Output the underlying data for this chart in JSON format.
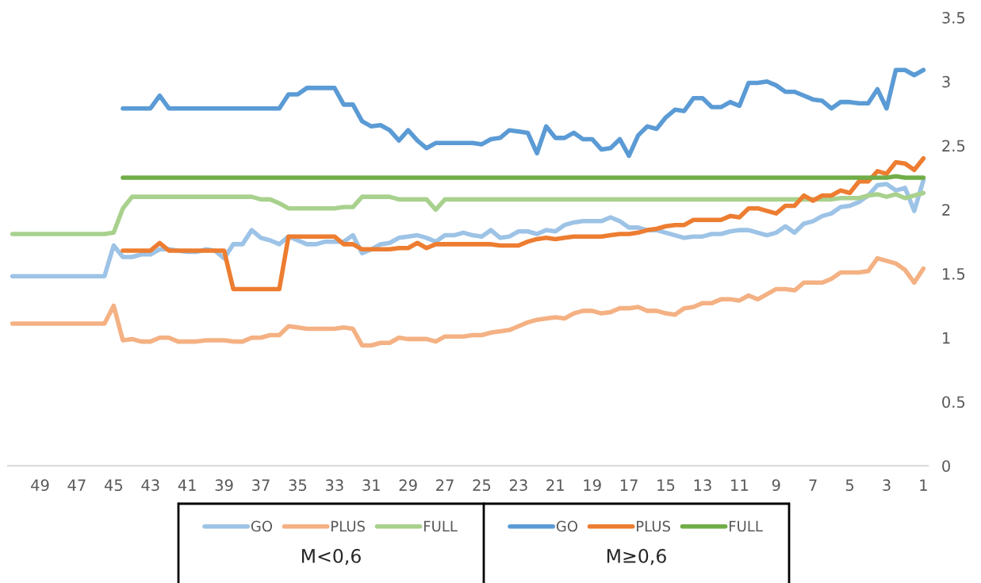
{
  "chart_data": {
    "type": "line",
    "x": [
      50.5,
      50,
      49.5,
      49,
      48.5,
      48,
      47.5,
      47,
      46.5,
      46,
      45.5,
      45,
      44.5,
      44,
      43.5,
      43,
      42.5,
      42,
      41.5,
      41,
      40.5,
      40,
      39.5,
      39,
      38.5,
      38,
      37.5,
      37,
      36.5,
      36,
      35.5,
      35,
      34.5,
      34,
      33.5,
      33,
      32.5,
      32,
      31.5,
      31,
      30.5,
      30,
      29.5,
      29,
      28.5,
      28,
      27.5,
      27,
      26.5,
      26,
      25.5,
      25,
      24.5,
      24,
      23.5,
      23,
      22.5,
      22,
      21.5,
      21,
      20.5,
      20,
      19.5,
      19,
      18.5,
      18,
      17.5,
      17,
      16.5,
      16,
      15.5,
      15,
      14.5,
      14,
      13.5,
      13,
      12.5,
      12,
      11.5,
      11,
      10.5,
      10,
      9.5,
      9,
      8.5,
      8,
      7.5,
      7,
      6.5,
      6,
      5.5,
      5,
      4.5,
      4,
      3.5,
      3,
      2.5,
      2,
      1.5,
      1
    ],
    "xlim": [
      50.75,
      0.75
    ],
    "xticks": [
      49,
      47,
      45,
      43,
      41,
      39,
      37,
      35,
      33,
      31,
      29,
      27,
      25,
      23,
      21,
      19,
      17,
      15,
      13,
      11,
      9,
      7,
      5,
      3,
      1
    ],
    "ylim": [
      0,
      3.5
    ],
    "yticks": [
      0,
      0.5,
      1,
      1.5,
      2,
      2.5,
      3,
      3.5
    ],
    "grid": false,
    "legend": "bottom",
    "annotations": [
      "M<0,6",
      "M≥0,6"
    ],
    "series": [
      {
        "name": "GO",
        "color": "#9dc3e6",
        "values": [
          1.48,
          1.48,
          1.48,
          1.48,
          1.48,
          1.48,
          1.48,
          1.48,
          1.48,
          1.48,
          1.48,
          1.72,
          1.63,
          1.63,
          1.65,
          1.65,
          1.69,
          1.69,
          1.68,
          1.67,
          1.67,
          1.69,
          1.68,
          1.62,
          1.73,
          1.73,
          1.84,
          1.78,
          1.76,
          1.73,
          1.79,
          1.76,
          1.73,
          1.73,
          1.75,
          1.75,
          1.75,
          1.8,
          1.66,
          1.69,
          1.73,
          1.74,
          1.78,
          1.79,
          1.8,
          1.78,
          1.75,
          1.8,
          1.8,
          1.82,
          1.8,
          1.79,
          1.84,
          1.78,
          1.79,
          1.83,
          1.83,
          1.81,
          1.84,
          1.83,
          1.88,
          1.9,
          1.91,
          1.91,
          1.91,
          1.94,
          1.91,
          1.86,
          1.86,
          1.84,
          1.84,
          1.82,
          1.8,
          1.78,
          1.79,
          1.79,
          1.81,
          1.81,
          1.83,
          1.84,
          1.84,
          1.82,
          1.8,
          1.82,
          1.87,
          1.82,
          1.89,
          1.91,
          1.95,
          1.97,
          2.02,
          2.03,
          2.06,
          2.11,
          2.19,
          2.2,
          2.15,
          2.17,
          1.99,
          2.23
        ]
      },
      {
        "name": "PLUS",
        "color": "#f4b183",
        "values": [
          1.11,
          1.11,
          1.11,
          1.11,
          1.11,
          1.11,
          1.11,
          1.11,
          1.11,
          1.11,
          1.11,
          1.25,
          0.98,
          0.99,
          0.97,
          0.97,
          1.0,
          1.0,
          0.97,
          0.97,
          0.97,
          0.98,
          0.98,
          0.98,
          0.97,
          0.97,
          1.0,
          1.0,
          1.02,
          1.02,
          1.09,
          1.08,
          1.07,
          1.07,
          1.07,
          1.07,
          1.08,
          1.07,
          0.94,
          0.94,
          0.96,
          0.96,
          1.0,
          0.99,
          0.99,
          0.99,
          0.97,
          1.01,
          1.01,
          1.01,
          1.02,
          1.02,
          1.04,
          1.05,
          1.06,
          1.09,
          1.12,
          1.14,
          1.15,
          1.16,
          1.15,
          1.19,
          1.21,
          1.21,
          1.19,
          1.2,
          1.23,
          1.23,
          1.24,
          1.21,
          1.21,
          1.19,
          1.18,
          1.23,
          1.24,
          1.27,
          1.27,
          1.3,
          1.3,
          1.29,
          1.33,
          1.3,
          1.34,
          1.38,
          1.38,
          1.37,
          1.43,
          1.43,
          1.43,
          1.46,
          1.51,
          1.51,
          1.51,
          1.52,
          1.62,
          1.6,
          1.58,
          1.53,
          1.43,
          1.54
        ]
      },
      {
        "name": "FULL",
        "color": "#a9d18e",
        "values": [
          1.81,
          1.81,
          1.81,
          1.81,
          1.81,
          1.81,
          1.81,
          1.81,
          1.81,
          1.81,
          1.81,
          1.82,
          2.01,
          2.1,
          2.1,
          2.1,
          2.1,
          2.1,
          2.1,
          2.1,
          2.1,
          2.1,
          2.1,
          2.1,
          2.1,
          2.1,
          2.1,
          2.08,
          2.08,
          2.05,
          2.01,
          2.01,
          2.01,
          2.01,
          2.01,
          2.01,
          2.02,
          2.02,
          2.1,
          2.1,
          2.1,
          2.1,
          2.08,
          2.08,
          2.08,
          2.08,
          2.0,
          2.08,
          2.08,
          2.08,
          2.08,
          2.08,
          2.08,
          2.08,
          2.08,
          2.08,
          2.08,
          2.08,
          2.08,
          2.08,
          2.08,
          2.08,
          2.08,
          2.08,
          2.08,
          2.08,
          2.08,
          2.08,
          2.08,
          2.08,
          2.08,
          2.08,
          2.08,
          2.08,
          2.08,
          2.08,
          2.08,
          2.08,
          2.08,
          2.08,
          2.08,
          2.08,
          2.08,
          2.08,
          2.08,
          2.08,
          2.08,
          2.08,
          2.08,
          2.08,
          2.09,
          2.09,
          2.09,
          2.11,
          2.12,
          2.1,
          2.12,
          2.09,
          2.11,
          2.13
        ]
      },
      {
        "name": "GO",
        "color": "#5b9bd5",
        "values": [
          null,
          null,
          null,
          null,
          null,
          null,
          null,
          null,
          null,
          null,
          null,
          null,
          2.79,
          2.79,
          2.79,
          2.79,
          2.89,
          2.79,
          2.79,
          2.79,
          2.79,
          2.79,
          2.79,
          2.79,
          2.79,
          2.79,
          2.79,
          2.79,
          2.79,
          2.79,
          2.9,
          2.9,
          2.95,
          2.95,
          2.95,
          2.95,
          2.82,
          2.82,
          2.69,
          2.65,
          2.66,
          2.62,
          2.54,
          2.62,
          2.54,
          2.48,
          2.52,
          2.52,
          2.52,
          2.52,
          2.52,
          2.51,
          2.55,
          2.56,
          2.62,
          2.61,
          2.6,
          2.44,
          2.65,
          2.56,
          2.56,
          2.6,
          2.55,
          2.55,
          2.47,
          2.48,
          2.55,
          2.42,
          2.58,
          2.65,
          2.63,
          2.72,
          2.78,
          2.77,
          2.87,
          2.87,
          2.8,
          2.8,
          2.84,
          2.81,
          2.99,
          2.99,
          3.0,
          2.97,
          2.92,
          2.92,
          2.89,
          2.86,
          2.85,
          2.79,
          2.84,
          2.84,
          2.83,
          2.83,
          2.94,
          2.79,
          3.09,
          3.09,
          3.05,
          3.09
        ]
      },
      {
        "name": "PLUS",
        "color": "#ed7d31",
        "values": [
          null,
          null,
          null,
          null,
          null,
          null,
          null,
          null,
          null,
          null,
          null,
          null,
          1.68,
          1.68,
          1.68,
          1.68,
          1.74,
          1.68,
          1.68,
          1.68,
          1.68,
          1.68,
          1.68,
          1.68,
          1.38,
          1.38,
          1.38,
          1.38,
          1.38,
          1.38,
          1.79,
          1.79,
          1.79,
          1.79,
          1.79,
          1.79,
          1.73,
          1.73,
          1.69,
          1.69,
          1.69,
          1.69,
          1.7,
          1.7,
          1.74,
          1.7,
          1.73,
          1.73,
          1.73,
          1.73,
          1.73,
          1.73,
          1.73,
          1.72,
          1.72,
          1.72,
          1.75,
          1.77,
          1.78,
          1.77,
          1.78,
          1.79,
          1.79,
          1.79,
          1.79,
          1.8,
          1.81,
          1.81,
          1.82,
          1.84,
          1.85,
          1.87,
          1.88,
          1.88,
          1.92,
          1.92,
          1.92,
          1.92,
          1.95,
          1.94,
          2.01,
          2.01,
          1.99,
          1.97,
          2.03,
          2.03,
          2.11,
          2.07,
          2.11,
          2.11,
          2.15,
          2.13,
          2.22,
          2.22,
          2.3,
          2.28,
          2.37,
          2.36,
          2.31,
          2.4
        ]
      },
      {
        "name": "FULL",
        "color": "#70ad47",
        "values": [
          null,
          null,
          null,
          null,
          null,
          null,
          null,
          null,
          null,
          null,
          null,
          null,
          2.25,
          2.25,
          2.25,
          2.25,
          2.25,
          2.25,
          2.25,
          2.25,
          2.25,
          2.25,
          2.25,
          2.25,
          2.25,
          2.25,
          2.25,
          2.25,
          2.25,
          2.25,
          2.25,
          2.25,
          2.25,
          2.25,
          2.25,
          2.25,
          2.25,
          2.25,
          2.25,
          2.25,
          2.25,
          2.25,
          2.25,
          2.25,
          2.25,
          2.25,
          2.25,
          2.25,
          2.25,
          2.25,
          2.25,
          2.25,
          2.25,
          2.25,
          2.25,
          2.25,
          2.25,
          2.25,
          2.25,
          2.25,
          2.25,
          2.25,
          2.25,
          2.25,
          2.25,
          2.25,
          2.25,
          2.25,
          2.25,
          2.25,
          2.25,
          2.25,
          2.25,
          2.25,
          2.25,
          2.25,
          2.25,
          2.25,
          2.25,
          2.25,
          2.25,
          2.25,
          2.25,
          2.25,
          2.25,
          2.25,
          2.25,
          2.25,
          2.25,
          2.25,
          2.25,
          2.25,
          2.25,
          2.25,
          2.25,
          2.25,
          2.26,
          2.25,
          2.25,
          2.25
        ]
      }
    ]
  }
}
